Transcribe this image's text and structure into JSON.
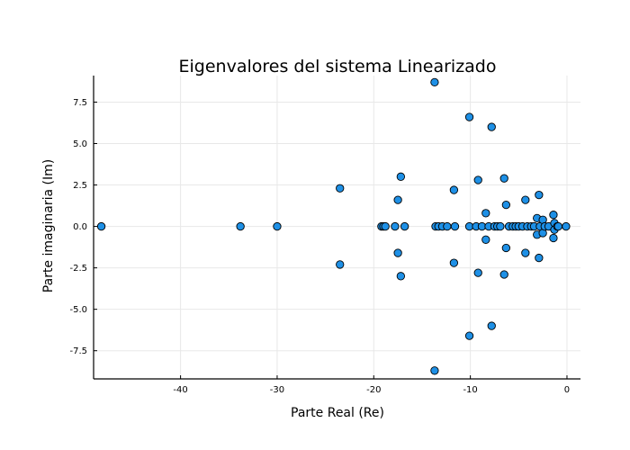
{
  "chart_data": {
    "type": "scatter",
    "title": "Eigenvalores del sistema Linearizado",
    "xlabel": "Parte Real (Re)",
    "ylabel": "Parte imaginaria (Im)",
    "xlim": [
      -49,
      1.4
    ],
    "ylim": [
      -9.2,
      9.1
    ],
    "xticks": [
      -40,
      -30,
      -20,
      -10,
      0
    ],
    "xtick_labels": [
      "-40",
      "-30",
      "-20",
      "-10",
      "0"
    ],
    "yticks": [
      -7.5,
      -5.0,
      -2.5,
      0.0,
      2.5,
      5.0,
      7.5
    ],
    "ytick_labels": [
      "-7.5",
      "-5.0",
      "-2.5",
      "0.0",
      "2.5",
      "5.0",
      "7.5"
    ],
    "grid": true,
    "legend": "none",
    "marker_color": "#1e90e6",
    "points": [
      {
        "x": -48.2,
        "y": 0
      },
      {
        "x": -33.8,
        "y": 0
      },
      {
        "x": -30.0,
        "y": 0
      },
      {
        "x": -23.5,
        "y": 2.3
      },
      {
        "x": -23.5,
        "y": -2.3
      },
      {
        "x": -19.2,
        "y": 0
      },
      {
        "x": -19.0,
        "y": 0
      },
      {
        "x": -18.8,
        "y": 0
      },
      {
        "x": -17.8,
        "y": 0
      },
      {
        "x": -17.5,
        "y": 1.6
      },
      {
        "x": -17.5,
        "y": -1.6
      },
      {
        "x": -17.2,
        "y": 3.0
      },
      {
        "x": -17.2,
        "y": -3.0
      },
      {
        "x": -16.8,
        "y": 0
      },
      {
        "x": -13.7,
        "y": 8.7
      },
      {
        "x": -13.7,
        "y": -8.7
      },
      {
        "x": -13.6,
        "y": 0
      },
      {
        "x": -13.3,
        "y": 0
      },
      {
        "x": -12.9,
        "y": 0
      },
      {
        "x": -12.4,
        "y": 0
      },
      {
        "x": -11.7,
        "y": 2.2
      },
      {
        "x": -11.7,
        "y": -2.2
      },
      {
        "x": -11.6,
        "y": 0
      },
      {
        "x": -10.1,
        "y": 6.6
      },
      {
        "x": -10.1,
        "y": -6.6
      },
      {
        "x": -10.1,
        "y": 0
      },
      {
        "x": -9.4,
        "y": 0
      },
      {
        "x": -9.2,
        "y": 2.8
      },
      {
        "x": -9.2,
        "y": -2.8
      },
      {
        "x": -8.8,
        "y": 0
      },
      {
        "x": -8.4,
        "y": 0.8
      },
      {
        "x": -8.4,
        "y": -0.8
      },
      {
        "x": -8.1,
        "y": 0
      },
      {
        "x": -7.8,
        "y": 6.0
      },
      {
        "x": -7.8,
        "y": -6.0
      },
      {
        "x": -7.5,
        "y": 0
      },
      {
        "x": -7.2,
        "y": 0
      },
      {
        "x": -6.9,
        "y": 0
      },
      {
        "x": -6.5,
        "y": 2.9
      },
      {
        "x": -6.5,
        "y": -2.9
      },
      {
        "x": -6.3,
        "y": 1.3
      },
      {
        "x": -6.3,
        "y": -1.3
      },
      {
        "x": -6.0,
        "y": 0
      },
      {
        "x": -5.6,
        "y": 0
      },
      {
        "x": -5.3,
        "y": 0
      },
      {
        "x": -5.0,
        "y": 0
      },
      {
        "x": -4.6,
        "y": 0
      },
      {
        "x": -4.3,
        "y": 1.6
      },
      {
        "x": -4.3,
        "y": -1.6
      },
      {
        "x": -4.1,
        "y": 0
      },
      {
        "x": -3.7,
        "y": 0
      },
      {
        "x": -3.4,
        "y": 0
      },
      {
        "x": -3.1,
        "y": 0.5
      },
      {
        "x": -3.1,
        "y": -0.5
      },
      {
        "x": -2.9,
        "y": 1.9
      },
      {
        "x": -2.9,
        "y": -1.9
      },
      {
        "x": -2.8,
        "y": 0
      },
      {
        "x": -2.5,
        "y": 0.4
      },
      {
        "x": -2.5,
        "y": -0.4
      },
      {
        "x": -2.3,
        "y": 0
      },
      {
        "x": -1.9,
        "y": 0
      },
      {
        "x": -1.4,
        "y": 0.7
      },
      {
        "x": -1.4,
        "y": -0.7
      },
      {
        "x": -1.3,
        "y": 0.2
      },
      {
        "x": -1.3,
        "y": -0.2
      },
      {
        "x": -1.0,
        "y": 0
      },
      {
        "x": -0.9,
        "y": 0
      },
      {
        "x": -0.1,
        "y": 0
      }
    ]
  }
}
